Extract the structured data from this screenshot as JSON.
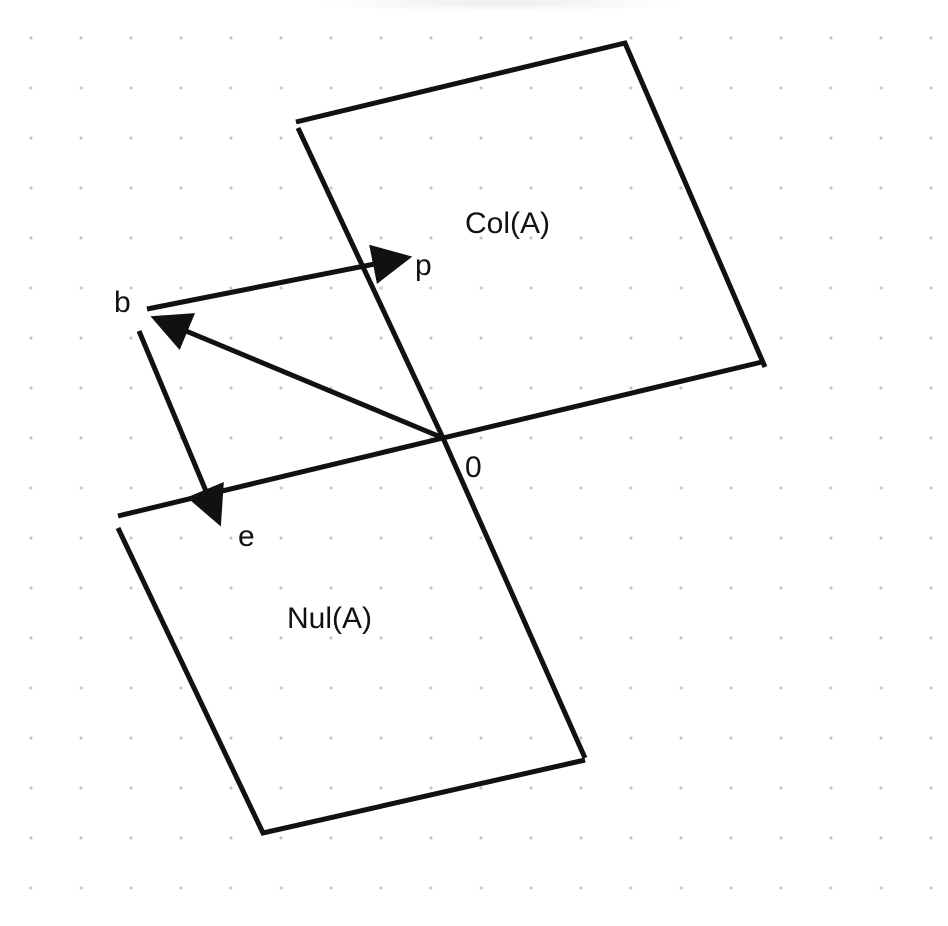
{
  "diagram": {
    "labels": {
      "col_space": "Col(A)",
      "null_space": "Nul(A)",
      "origin": "0",
      "vector_b": "b",
      "vector_p": "p",
      "vector_e": "e"
    },
    "colors": {
      "stroke": "#111111",
      "grid_dot": "#c4c4c4",
      "background": "#ffffff"
    }
  }
}
